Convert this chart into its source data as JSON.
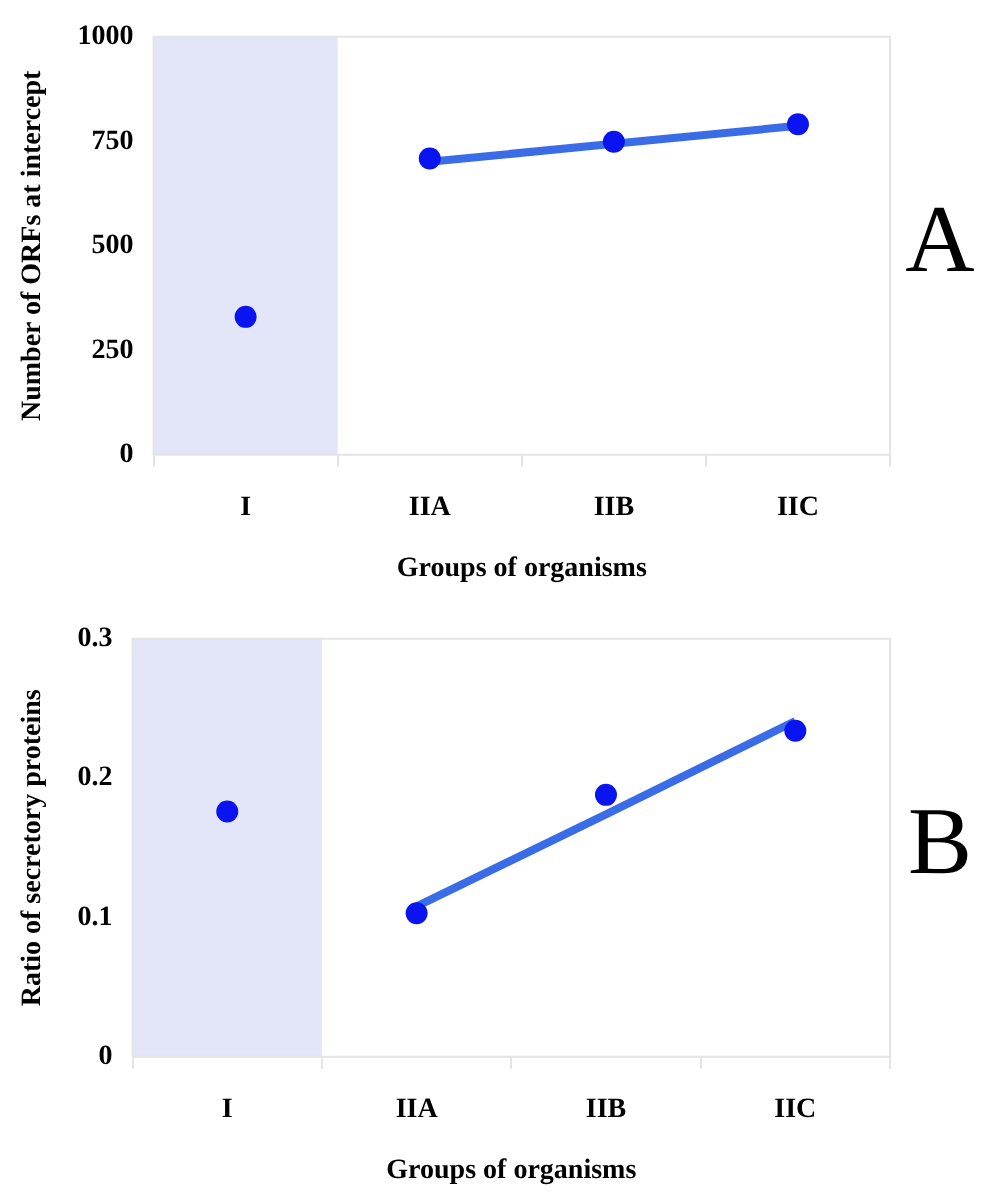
{
  "chart_data": [
    {
      "type": "scatter",
      "xlabel": "Groups of organisms",
      "ylabel": "Number of ORFs at intercept",
      "categories": [
        "I",
        "IIA",
        "IIB",
        "IIC"
      ],
      "ylim": [
        0,
        1000
      ],
      "yticks": [
        0,
        250,
        500,
        750,
        1000
      ],
      "series": [
        {
          "type": "scatter",
          "color": "#0a14f0",
          "values": [
            330,
            709,
            749,
            791
          ],
          "marker": "circle"
        },
        {
          "type": "line",
          "color": "#3a6ce8",
          "values": [
            null,
            701,
            744,
            787
          ],
          "marker": "none",
          "line_style": "solid"
        }
      ],
      "bands": [
        {
          "axis": "x",
          "from": "I",
          "to": "I",
          "color": "#e3e5f9"
        }
      ],
      "annotations": [
        "A"
      ],
      "grid": false,
      "legend": false
    },
    {
      "type": "scatter",
      "xlabel": "Groups of organisms",
      "ylabel": "Ratio of secretory proteins",
      "categories": [
        "I",
        "IIA",
        "IIB",
        "IIC"
      ],
      "ylim": [
        0,
        0.3
      ],
      "yticks": [
        0,
        0.1,
        0.2,
        0.3
      ],
      "series": [
        {
          "type": "scatter",
          "color": "#0a14f0",
          "values": [
            0.176,
            0.103,
            0.188,
            0.234
          ],
          "marker": "circle"
        },
        {
          "type": "line",
          "color": "#3a6ce8",
          "values": [
            null,
            0.108,
            0.174,
            0.241
          ],
          "marker": "none",
          "line_style": "solid"
        }
      ],
      "bands": [
        {
          "axis": "x",
          "from": "I",
          "to": "I",
          "color": "#e3e5f9"
        }
      ],
      "annotations": [
        "B"
      ],
      "grid": false,
      "legend": false
    }
  ]
}
